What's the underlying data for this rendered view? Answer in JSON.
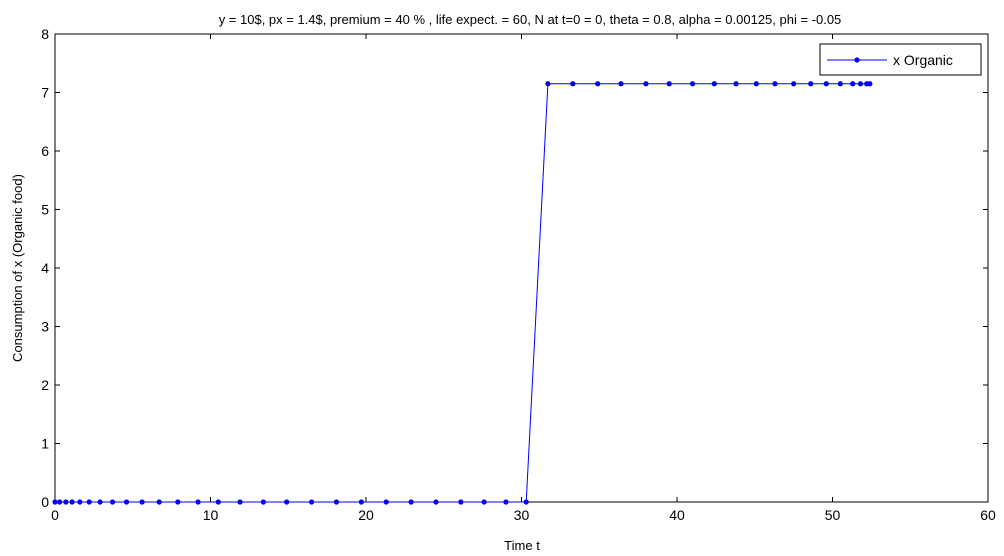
{
  "chart_data": {
    "type": "line",
    "title": "y = 10$, px = 1.4$, premium = 40 % , life expect. = 60, N at t=0 = 0, theta = 0.8, alpha = 0.00125, phi = -0.05",
    "xlabel": "Time t",
    "ylabel": "Consumption of x (Organic food)",
    "xlim": [
      0,
      60
    ],
    "ylim": [
      0,
      8
    ],
    "xticks": [
      0,
      10,
      20,
      30,
      40,
      50,
      60
    ],
    "yticks": [
      0,
      1,
      2,
      3,
      4,
      5,
      6,
      7,
      8
    ],
    "grid": false,
    "legend_position": "top-right",
    "series": [
      {
        "name": "x Organic",
        "color": "#0000ff",
        "x": [
          0,
          0.3,
          0.7,
          1.1,
          1.6,
          2.2,
          2.9,
          3.7,
          4.6,
          5.6,
          6.7,
          7.9,
          9.2,
          10.5,
          11.9,
          13.4,
          14.9,
          16.5,
          18.1,
          19.7,
          21.3,
          22.9,
          24.5,
          26.1,
          27.6,
          29.0,
          30.3,
          31.7,
          33.3,
          34.9,
          36.4,
          38.0,
          39.5,
          41.0,
          42.4,
          43.8,
          45.1,
          46.3,
          47.5,
          48.6,
          49.6,
          50.5,
          51.3,
          51.8,
          52.2,
          52.4
        ],
        "y": [
          0,
          0,
          0,
          0,
          0,
          0,
          0,
          0,
          0,
          0,
          0,
          0,
          0,
          0,
          0,
          0,
          0,
          0,
          0,
          0,
          0,
          0,
          0,
          0,
          0,
          0,
          0,
          7.15,
          7.15,
          7.15,
          7.15,
          7.15,
          7.15,
          7.15,
          7.15,
          7.15,
          7.15,
          7.15,
          7.15,
          7.15,
          7.15,
          7.15,
          7.15,
          7.15,
          7.15,
          7.15
        ]
      }
    ]
  }
}
